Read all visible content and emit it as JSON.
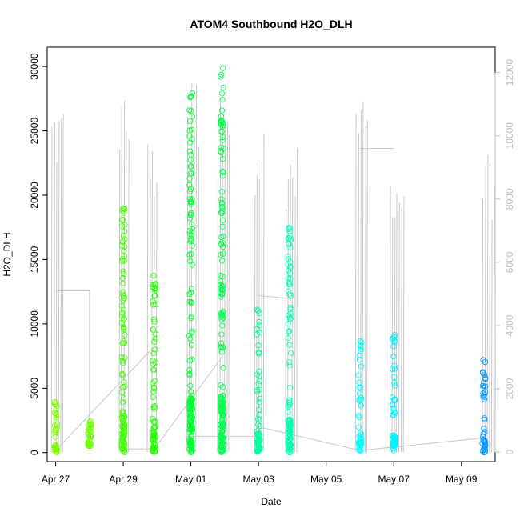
{
  "chart_data": {
    "type": "scatter",
    "title": "ATOM4 Southbound H2O_DLH",
    "xlabel": "Date",
    "ylabel": "H2O_DLH",
    "x_ticks": [
      "Apr 27",
      "Apr 29",
      "May 01",
      "May 03",
      "May 05",
      "May 07",
      "May 09"
    ],
    "y_ticks": [
      "0",
      "5000",
      "10000",
      "15000",
      "20000",
      "25000",
      "30000"
    ],
    "y_right_ticks": [
      "0",
      "2000",
      "4000",
      "6000",
      "8000",
      "10000",
      "12000"
    ],
    "xlim": [
      "2018-04-26T18:00",
      "2018-05-10T00:00"
    ],
    "ylim": [
      -700,
      31500
    ],
    "y_right_lim": [
      -300,
      12800
    ],
    "series_colors": {
      "h2o_points": "color runs from yellow-green (#7fff00) to blue (#0096ff) over time",
      "altitude_trace": "#c8c8c8"
    },
    "clusters": [
      {
        "date": "2018-04-27T00:00",
        "y_min": 0,
        "y_max": 4000,
        "color": "#80ff00"
      },
      {
        "date": "2018-04-28T00:00",
        "y_min": 500,
        "y_max": 2500,
        "color": "#6eff00"
      },
      {
        "date": "2018-04-29T00:00",
        "y_min": 0,
        "y_max": 19500,
        "color": "#40ff00"
      },
      {
        "date": "2018-04-29T22:00",
        "y_min": 0,
        "y_max": 14000,
        "color": "#26ff00"
      },
      {
        "date": "2018-05-01T00:00",
        "y_min": 0,
        "y_max": 28500,
        "color": "#00ff33"
      },
      {
        "date": "2018-05-01T22:00",
        "y_min": 0,
        "y_max": 30000,
        "color": "#00ff4d"
      },
      {
        "date": "2018-05-03T00:00",
        "y_min": 0,
        "y_max": 11200,
        "color": "#00ff99"
      },
      {
        "date": "2018-05-03T22:00",
        "y_min": 0,
        "y_max": 17500,
        "color": "#00ffb2"
      },
      {
        "date": "2018-05-06T00:00",
        "y_min": 0,
        "y_max": 8700,
        "color": "#00ffff"
      },
      {
        "date": "2018-05-07T00:00",
        "y_min": 0,
        "y_max": 9200,
        "color": "#00f2ff"
      },
      {
        "date": "2018-05-09T16:00",
        "y_min": 0,
        "y_max": 7200,
        "color": "#0099ff"
      }
    ],
    "altitude_trace": {
      "description": "secondary right-axis gray line (flight altitude)",
      "spikes": [
        {
          "date": "2018-04-27T00:00",
          "max": 11200
        },
        {
          "date": "2018-04-29T00:00",
          "max": 11500
        },
        {
          "date": "2018-04-29T20:00",
          "max": 9900
        },
        {
          "date": "2018-05-01T00:00",
          "max": 12000
        },
        {
          "date": "2018-05-01T22:00",
          "max": 12000
        },
        {
          "date": "2018-05-03T00:00",
          "max": 10400
        },
        {
          "date": "2018-05-03T22:00",
          "max": 9800
        },
        {
          "date": "2018-05-06T00:00",
          "max": 11600
        },
        {
          "date": "2018-05-07T00:00",
          "max": 9300
        },
        {
          "date": "2018-05-09T18:00",
          "max": 9400
        }
      ]
    },
    "grid": false,
    "legend": "none"
  }
}
